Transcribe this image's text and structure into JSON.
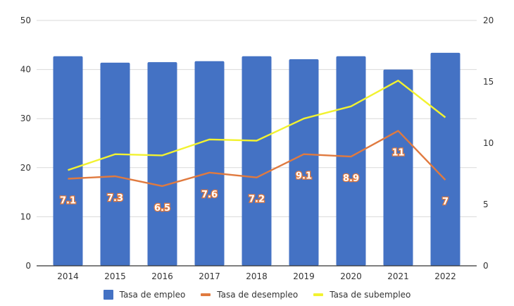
{
  "chart_data": {
    "type": "bar+line",
    "title": "",
    "categories": [
      "2014",
      "2015",
      "2016",
      "2017",
      "2018",
      "2019",
      "2020",
      "2021",
      "2022"
    ],
    "left_axis": {
      "ylim": [
        0,
        50
      ],
      "ticks": [
        "0",
        "10",
        "20",
        "30",
        "40",
        "50"
      ]
    },
    "right_axis": {
      "ylim": [
        0,
        20
      ],
      "ticks": [
        "0",
        "5",
        "10",
        "15",
        "20"
      ]
    },
    "grid": true,
    "legend_position": "bottom",
    "series": [
      {
        "name": "Tasa de empleo",
        "type": "bar",
        "axis": "left",
        "color": "#4472c4",
        "values": [
          42.7,
          41.4,
          41.5,
          41.7,
          42.7,
          42.1,
          42.7,
          40.0,
          43.4
        ]
      },
      {
        "name": "Tasa de desempleo",
        "type": "line",
        "axis": "right",
        "color": "#e07a3f",
        "values": [
          7.1,
          7.3,
          6.5,
          7.6,
          7.2,
          9.1,
          8.9,
          11,
          7
        ],
        "data_labels": [
          "7.1",
          "7.3",
          "6.5",
          "7.6",
          "7.2",
          "9.1",
          "8.9",
          "11",
          "7"
        ]
      },
      {
        "name": "Tasa de subempleo",
        "type": "line",
        "axis": "right",
        "color": "#f2f230",
        "values": [
          7.8,
          9.1,
          9.0,
          10.3,
          10.2,
          12.0,
          13.0,
          15.1,
          12.1
        ]
      }
    ]
  }
}
